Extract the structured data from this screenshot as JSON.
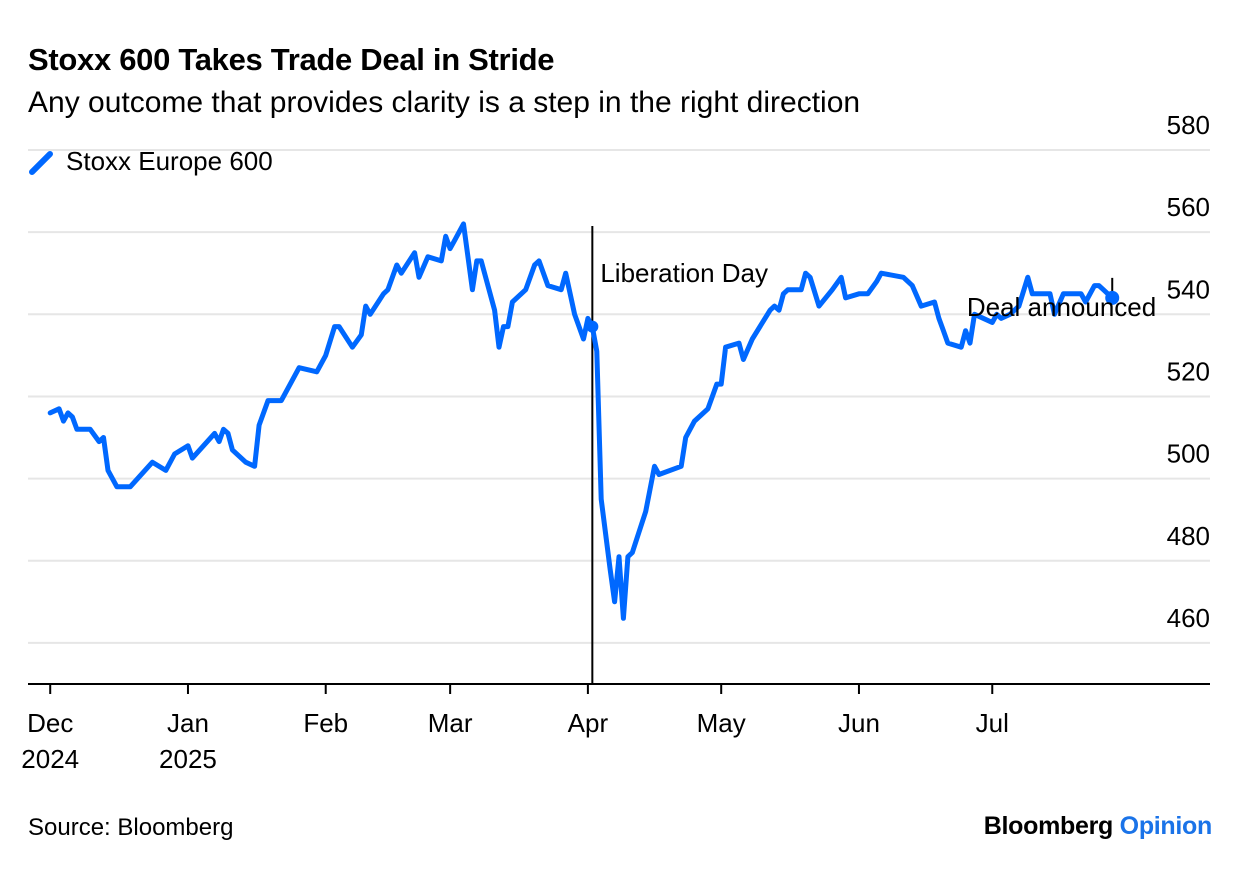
{
  "title": "Stoxx 600 Takes Trade Deal in Stride",
  "subtitle": "Any outcome that provides clarity is a step in the right direction",
  "legend": [
    {
      "label": "Stoxx Europe 600",
      "color": "#0068ff"
    }
  ],
  "footer": {
    "source": "Source: Bloomberg",
    "brand_main": "Bloomberg",
    "brand_accent": "Opinion"
  },
  "chart_data": {
    "type": "line",
    "x_type": "date",
    "xlim": [
      "2024-11-26",
      "2025-08-19"
    ],
    "ylim": [
      450,
      580
    ],
    "y_ticks": [
      460,
      480,
      500,
      520,
      540,
      560,
      580
    ],
    "x_ticks": [
      {
        "date": "2024-12-01",
        "label": [
          "Dec",
          "2024"
        ]
      },
      {
        "date": "2025-01-01",
        "label": [
          "Jan",
          "2025"
        ]
      },
      {
        "date": "2025-02-01",
        "label": [
          "Feb"
        ]
      },
      {
        "date": "2025-03-01",
        "label": [
          "Mar"
        ]
      },
      {
        "date": "2025-04-01",
        "label": [
          "Apr"
        ]
      },
      {
        "date": "2025-05-01",
        "label": [
          "May"
        ]
      },
      {
        "date": "2025-06-01",
        "label": [
          "Jun"
        ]
      },
      {
        "date": "2025-07-01",
        "label": [
          "Jul"
        ]
      }
    ],
    "grid": true,
    "series": [
      {
        "name": "Stoxx Europe 600",
        "color": "#0068ff",
        "points": [
          [
            "2024-12-01",
            516
          ],
          [
            "2024-12-03",
            517
          ],
          [
            "2024-12-04",
            514
          ],
          [
            "2024-12-05",
            516
          ],
          [
            "2024-12-06",
            515
          ],
          [
            "2024-12-07",
            512
          ],
          [
            "2024-12-10",
            512
          ],
          [
            "2024-12-12",
            509
          ],
          [
            "2024-12-13",
            510
          ],
          [
            "2024-12-14",
            502
          ],
          [
            "2024-12-16",
            498
          ],
          [
            "2024-12-19",
            498
          ],
          [
            "2024-12-24",
            504
          ],
          [
            "2024-12-27",
            502
          ],
          [
            "2024-12-29",
            506
          ],
          [
            "2025-01-01",
            508
          ],
          [
            "2025-01-02",
            505
          ],
          [
            "2025-01-07",
            511
          ],
          [
            "2025-01-08",
            509
          ],
          [
            "2025-01-09",
            512
          ],
          [
            "2025-01-10",
            511
          ],
          [
            "2025-01-11",
            507
          ],
          [
            "2025-01-14",
            504
          ],
          [
            "2025-01-16",
            503
          ],
          [
            "2025-01-17",
            513
          ],
          [
            "2025-01-19",
            519
          ],
          [
            "2025-01-22",
            519
          ],
          [
            "2025-01-26",
            527
          ],
          [
            "2025-01-30",
            526
          ],
          [
            "2025-02-01",
            530
          ],
          [
            "2025-02-03",
            537
          ],
          [
            "2025-02-04",
            537
          ],
          [
            "2025-02-07",
            532
          ],
          [
            "2025-02-09",
            535
          ],
          [
            "2025-02-10",
            542
          ],
          [
            "2025-02-11",
            540
          ],
          [
            "2025-02-14",
            545
          ],
          [
            "2025-02-15",
            546
          ],
          [
            "2025-02-17",
            552
          ],
          [
            "2025-02-18",
            550
          ],
          [
            "2025-02-21",
            555
          ],
          [
            "2025-02-22",
            549
          ],
          [
            "2025-02-24",
            554
          ],
          [
            "2025-02-27",
            553
          ],
          [
            "2025-02-28",
            559
          ],
          [
            "2025-03-01",
            556
          ],
          [
            "2025-03-02",
            558
          ],
          [
            "2025-03-04",
            562
          ],
          [
            "2025-03-06",
            546
          ],
          [
            "2025-03-07",
            553
          ],
          [
            "2025-03-08",
            553
          ],
          [
            "2025-03-11",
            541
          ],
          [
            "2025-03-12",
            532
          ],
          [
            "2025-03-13",
            537
          ],
          [
            "2025-03-14",
            537
          ],
          [
            "2025-03-15",
            543
          ],
          [
            "2025-03-18",
            546
          ],
          [
            "2025-03-20",
            552
          ],
          [
            "2025-03-21",
            553
          ],
          [
            "2025-03-23",
            547
          ],
          [
            "2025-03-26",
            546
          ],
          [
            "2025-03-27",
            550
          ],
          [
            "2025-03-29",
            540
          ],
          [
            "2025-03-31",
            534
          ],
          [
            "2025-04-01",
            539
          ],
          [
            "2025-04-02",
            537
          ],
          [
            "2025-04-03",
            531
          ],
          [
            "2025-04-04",
            495
          ],
          [
            "2025-04-06",
            478
          ],
          [
            "2025-04-07",
            470
          ],
          [
            "2025-04-08",
            481
          ],
          [
            "2025-04-09",
            466
          ],
          [
            "2025-04-10",
            481
          ],
          [
            "2025-04-11",
            482
          ],
          [
            "2025-04-14",
            492
          ],
          [
            "2025-04-16",
            503
          ],
          [
            "2025-04-17",
            501
          ],
          [
            "2025-04-22",
            503
          ],
          [
            "2025-04-23",
            510
          ],
          [
            "2025-04-25",
            514
          ],
          [
            "2025-04-28",
            517
          ],
          [
            "2025-04-30",
            523
          ],
          [
            "2025-05-01",
            523
          ],
          [
            "2025-05-02",
            532
          ],
          [
            "2025-05-05",
            533
          ],
          [
            "2025-05-06",
            529
          ],
          [
            "2025-05-08",
            534
          ],
          [
            "2025-05-12",
            541
          ],
          [
            "2025-05-13",
            542
          ],
          [
            "2025-05-14",
            541
          ],
          [
            "2025-05-15",
            545
          ],
          [
            "2025-05-16",
            546
          ],
          [
            "2025-05-19",
            546
          ],
          [
            "2025-05-20",
            550
          ],
          [
            "2025-05-21",
            549
          ],
          [
            "2025-05-23",
            542
          ],
          [
            "2025-05-26",
            546
          ],
          [
            "2025-05-28",
            549
          ],
          [
            "2025-05-29",
            544
          ],
          [
            "2025-06-01",
            545
          ],
          [
            "2025-06-03",
            545
          ],
          [
            "2025-06-05",
            548
          ],
          [
            "2025-06-06",
            550
          ],
          [
            "2025-06-11",
            549
          ],
          [
            "2025-06-13",
            547
          ],
          [
            "2025-06-15",
            542
          ],
          [
            "2025-06-18",
            543
          ],
          [
            "2025-06-19",
            539
          ],
          [
            "2025-06-20",
            536
          ],
          [
            "2025-06-21",
            533
          ],
          [
            "2025-06-24",
            532
          ],
          [
            "2025-06-25",
            536
          ],
          [
            "2025-06-26",
            533
          ],
          [
            "2025-06-27",
            540
          ],
          [
            "2025-07-01",
            538
          ],
          [
            "2025-07-02",
            540
          ],
          [
            "2025-07-03",
            539
          ],
          [
            "2025-07-05",
            540
          ],
          [
            "2025-07-07",
            542
          ],
          [
            "2025-07-09",
            549
          ],
          [
            "2025-07-10",
            545
          ],
          [
            "2025-07-14",
            545
          ],
          [
            "2025-07-15",
            540
          ],
          [
            "2025-07-17",
            545
          ],
          [
            "2025-07-21",
            545
          ],
          [
            "2025-07-22",
            543
          ],
          [
            "2025-07-24",
            547
          ],
          [
            "2025-07-25",
            547
          ],
          [
            "2025-07-26",
            546
          ],
          [
            "2025-07-27",
            545
          ],
          [
            "2025-07-28",
            544
          ]
        ]
      }
    ],
    "annotations": [
      {
        "type": "vline",
        "date": "2025-04-02",
        "label": "Liberation Day",
        "marker_value": 537
      },
      {
        "type": "point",
        "date": "2025-07-28",
        "value": 544,
        "label": "Deal announced"
      }
    ]
  }
}
